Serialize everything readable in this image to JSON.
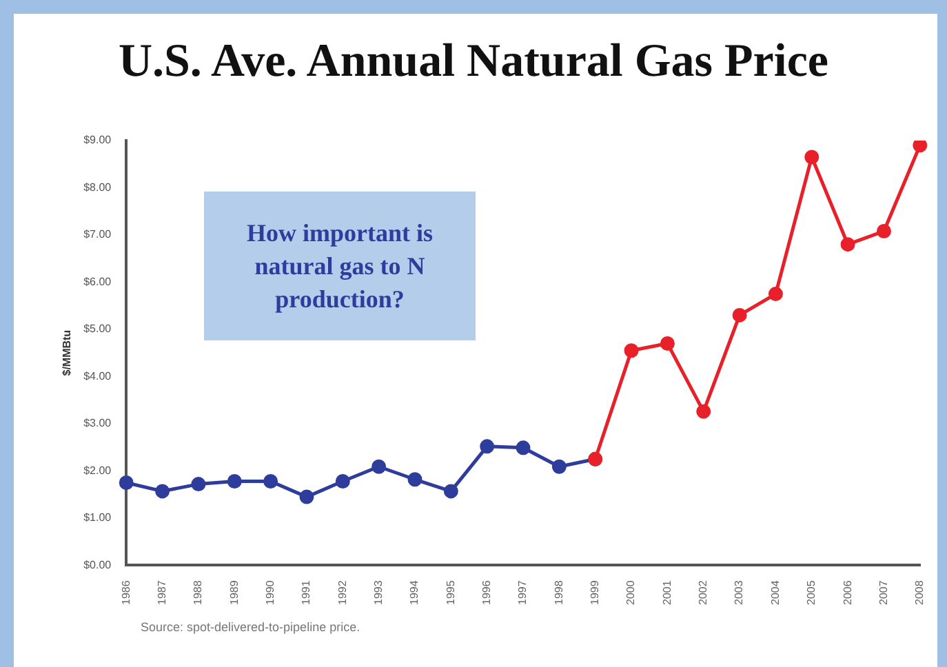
{
  "chart_data": {
    "type": "line",
    "title": "U.S. Ave. Annual Natural Gas Price",
    "ylabel": "$/MMBtu",
    "categories": [
      "1986",
      "1987",
      "1988",
      "1989",
      "1990",
      "1991",
      "1992",
      "1993",
      "1994",
      "1995",
      "1996",
      "1997",
      "1998",
      "1999",
      "2000",
      "2001",
      "2002",
      "2003",
      "2004",
      "2005",
      "2006",
      "2007",
      "2008"
    ],
    "series": [
      {
        "color": "#2e3d9c",
        "values": [
          1.75,
          1.57,
          1.72,
          1.78,
          1.78,
          1.45,
          1.78,
          2.09,
          1.82,
          1.57,
          2.52,
          2.49,
          2.09,
          2.25,
          null,
          null,
          null,
          null,
          null,
          null,
          null,
          null,
          null
        ]
      },
      {
        "color": "#e8202a",
        "values": [
          null,
          null,
          null,
          null,
          null,
          null,
          null,
          null,
          null,
          null,
          null,
          null,
          null,
          2.25,
          4.55,
          4.7,
          3.26,
          5.3,
          5.75,
          8.65,
          6.8,
          7.08,
          8.9
        ]
      }
    ],
    "ylim": [
      0,
      9
    ],
    "yticks": [
      {
        "value": 0,
        "label": "$0.00"
      },
      {
        "value": 1,
        "label": "$1.00"
      },
      {
        "value": 2,
        "label": "$2.00"
      },
      {
        "value": 3,
        "label": "$3.00"
      },
      {
        "value": 4,
        "label": "$4.00"
      },
      {
        "value": 5,
        "label": "$5.00"
      },
      {
        "value": 6,
        "label": "$6.00"
      },
      {
        "value": 7,
        "label": "$7.00"
      },
      {
        "value": 8,
        "label": "$8.00"
      },
      {
        "value": 9,
        "label": "$9.00"
      }
    ],
    "marker": "circle",
    "line_style": "solid",
    "grid": false,
    "legend": false,
    "annotations": [
      "How important is natural gas to N production?",
      "Source: spot-delivered-to-pipeline price."
    ]
  }
}
